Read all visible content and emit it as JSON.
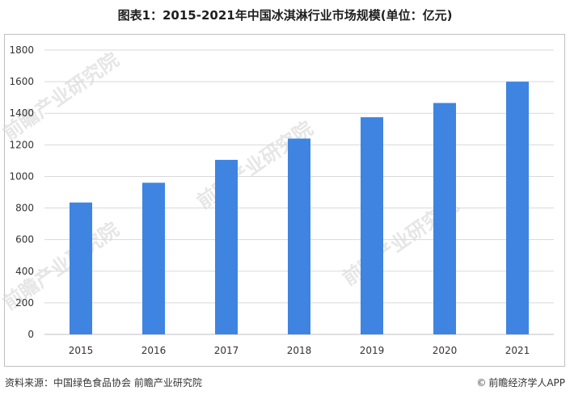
{
  "title": "图表1：2015-2021年中国冰淇淋行业市场规模(单位：亿元)",
  "watermark_text": "前瞻产业研究院",
  "footer": {
    "source": "资料来源：中国绿色食品协会 前瞻产业研究院",
    "brand_icon": "copyright-icon",
    "brand": "前瞻经济学人APP"
  },
  "colors": {
    "bar": "#3f84e0",
    "grid": "#d9d9d9",
    "axis_text": "#333333"
  },
  "chart_data": {
    "type": "bar",
    "categories": [
      "2015",
      "2016",
      "2017",
      "2018",
      "2019",
      "2020",
      "2021"
    ],
    "values": [
      835,
      960,
      1105,
      1240,
      1375,
      1465,
      1600
    ],
    "ylim": [
      0,
      1800
    ],
    "yticks": [
      0,
      200,
      400,
      600,
      800,
      1000,
      1200,
      1400,
      1600,
      1800
    ],
    "grid": true,
    "xlabel": "",
    "ylabel": ""
  }
}
